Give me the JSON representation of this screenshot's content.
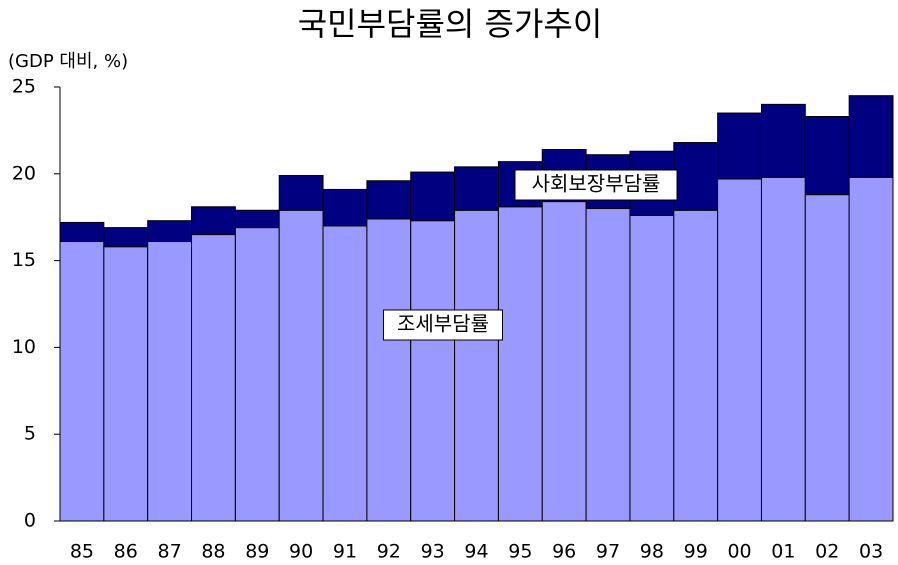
{
  "chart_data": {
    "type": "stacked_bar",
    "title": "국민부담률의 증가추이",
    "y_label": "(GDP 대비, %)",
    "categories": [
      "85",
      "86",
      "87",
      "88",
      "89",
      "90",
      "91",
      "92",
      "93",
      "94",
      "95",
      "96",
      "97",
      "98",
      "99",
      "00",
      "01",
      "02",
      "03"
    ],
    "series": [
      {
        "name": "조세부담률",
        "color": "#9999ff",
        "values": [
          16.1,
          15.8,
          16.1,
          16.5,
          16.9,
          17.9,
          17.0,
          17.4,
          17.3,
          17.9,
          18.1,
          18.4,
          18.0,
          17.6,
          17.9,
          19.7,
          19.8,
          18.8,
          19.8
        ]
      },
      {
        "name": "사회보장부담률",
        "color": "#000080",
        "values": [
          1.1,
          1.1,
          1.2,
          1.6,
          1.0,
          2.0,
          2.1,
          2.2,
          2.8,
          2.5,
          2.6,
          3.0,
          3.1,
          3.7,
          3.9,
          3.8,
          4.2,
          4.5,
          4.7
        ]
      }
    ],
    "ylim": [
      0,
      25
    ],
    "yticks": [
      0,
      5,
      10,
      15,
      20,
      25
    ],
    "grid": false
  }
}
